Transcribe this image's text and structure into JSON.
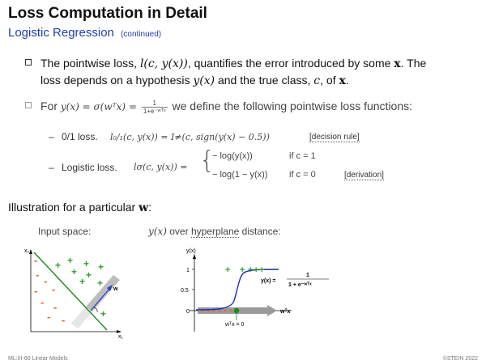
{
  "header": {
    "title": "Loss Computation in Detail",
    "subtitle": "Logistic Regression",
    "subtitle_note": "(continued)"
  },
  "bullet1": {
    "line1_a": "The pointwise loss, ",
    "line1_math": "l(c, y(x))",
    "line1_b": ", quantifies the error introduced by some ",
    "line1_x": "x",
    "line1_c": ". The",
    "line2_a": "loss depends on a hypothesis ",
    "line2_math": "y(x)",
    "line2_b": " and the true class, ",
    "line2_c_sym": "c",
    "line2_c": ", of ",
    "line2_x": "x",
    "line2_d": "."
  },
  "bullet2": {
    "pre": "For",
    "formula": "y(x) = σ(wᵀx) =",
    "frac_num": "1",
    "frac_den": "1+e⁻ʷᵀˣ",
    "post": "we define the following pointwise loss functions:"
  },
  "losses": {
    "zero_one_label": "0/1 loss.",
    "zero_one_formula": "l₀/₁(c, y(x))  =  I≠(c, sign(y(x) − 0.5))",
    "zero_one_tag": "[decision rule]",
    "logistic_label": "Logistic loss.",
    "logistic_lhs": "lσ(c, y(x))  =",
    "case1_expr": "− log(y(x))",
    "case1_cond": "if c = 1",
    "case2_expr": "− log(1 − y(x))",
    "case2_cond": "if c = 0",
    "logistic_tag": "[derivation]"
  },
  "illustration": {
    "heading": "Illustration for a particular",
    "heading_w": "w",
    "heading_colon": ":",
    "input_space_caption": "Input space:",
    "curve_caption_math": "y(x)",
    "curve_caption_a": " over ",
    "curve_caption_link": "hyperplane",
    "curve_caption_b": " distance:"
  },
  "left_plot": {
    "axis_y": "x₂",
    "axis_x": "x₁",
    "w_label": "w",
    "plus": "+",
    "minus": "-",
    "colors": {
      "positive": "#2f9e2f",
      "negative": "#e8632b",
      "hyperplane": "#1a8a1a",
      "normal": "#2a3fc8"
    }
  },
  "right_plot": {
    "axis_y": "y(x)",
    "axis_x": "wᵀx",
    "tick_1": "1",
    "tick_05": "0.5",
    "tick_0": "0",
    "zero_label": "wᵀx = 0",
    "formula_lhs": "y(x) =",
    "formula_num": "1",
    "formula_den": "1 + e⁻ʷᵀˣ",
    "colors": {
      "sigmoid": "#1b2fb5",
      "positive": "#2f9e2f",
      "negative": "#e8632b",
      "marker": "#1a8a1a"
    }
  },
  "footer": {
    "left": "ML:III-60   Linear Models",
    "right": "©STEIN 2022"
  }
}
